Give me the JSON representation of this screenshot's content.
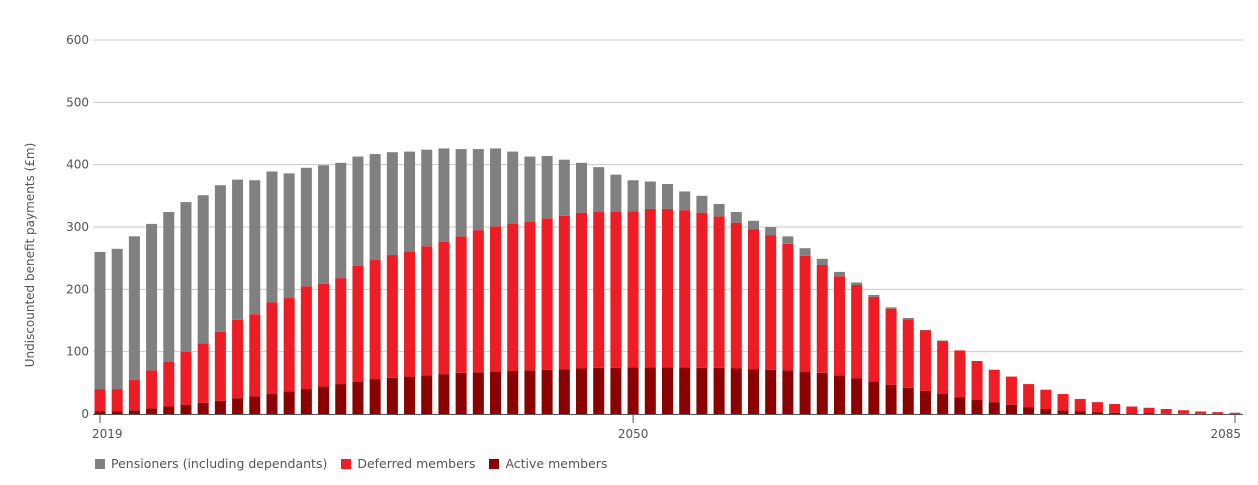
{
  "chart_data": {
    "type": "bar",
    "stacked": true,
    "ylabel": "Undiscounted benefit payments (£m)",
    "ylim": [
      0,
      600
    ],
    "yticks": [
      0,
      100,
      200,
      300,
      400,
      500,
      600
    ],
    "x": [
      2019,
      2020,
      2021,
      2022,
      2023,
      2024,
      2025,
      2026,
      2027,
      2028,
      2029,
      2030,
      2031,
      2032,
      2033,
      2034,
      2035,
      2036,
      2037,
      2038,
      2039,
      2040,
      2041,
      2042,
      2043,
      2044,
      2045,
      2046,
      2047,
      2048,
      2049,
      2050,
      2051,
      2052,
      2053,
      2054,
      2055,
      2056,
      2057,
      2058,
      2059,
      2060,
      2061,
      2062,
      2063,
      2064,
      2065,
      2066,
      2067,
      2068,
      2069,
      2070,
      2071,
      2072,
      2073,
      2074,
      2075,
      2076,
      2077,
      2078,
      2079,
      2080,
      2081,
      2082,
      2083,
      2084,
      2085
    ],
    "xtick_labels": [
      "2019",
      "2050",
      "2085"
    ],
    "grid": true,
    "legend_position": "bottom-left",
    "series": [
      {
        "name": "Active members",
        "color": "#8b0000",
        "values": [
          4,
          4,
          6,
          9,
          12,
          15,
          18,
          21,
          25,
          28,
          32,
          36,
          40,
          44,
          48,
          52,
          56,
          58,
          60,
          62,
          64,
          66,
          67,
          68,
          69,
          70,
          71,
          72,
          73,
          74,
          74,
          75,
          75,
          75,
          75,
          74,
          74,
          73,
          72,
          71,
          70,
          68,
          66,
          62,
          57,
          52,
          47,
          42,
          37,
          32,
          27,
          23,
          19,
          15,
          11,
          8,
          6,
          4,
          3,
          2,
          1,
          0.8,
          0.5,
          0.3,
          0.2,
          0.1,
          0.1
        ]
      },
      {
        "name": "Deferred members",
        "color": "#ee1c25",
        "values": [
          36,
          36,
          49,
          61,
          72,
          85,
          95,
          111,
          126,
          132,
          147,
          150,
          165,
          165,
          170,
          186,
          191,
          197,
          201,
          207,
          212,
          219,
          228,
          233,
          237,
          238,
          243,
          246,
          250,
          250,
          250,
          250,
          254,
          254,
          252,
          249,
          243,
          234,
          224,
          216,
          203,
          186,
          173,
          159,
          150,
          136,
          122,
          110,
          97,
          85,
          75,
          62,
          52,
          45,
          37,
          31,
          26,
          20,
          16,
          14,
          11,
          9.2,
          7.5,
          5.7,
          3.8,
          2.9,
          1.9
        ]
      },
      {
        "name": "Pensioners (including dependants)",
        "color": "#808080",
        "values": [
          220,
          225,
          230,
          235,
          240,
          240,
          238,
          235,
          225,
          215,
          210,
          200,
          190,
          190,
          185,
          175,
          170,
          165,
          160,
          155,
          150,
          140,
          130,
          125,
          115,
          105,
          100,
          90,
          80,
          72,
          60,
          50,
          44,
          40,
          30,
          27,
          20,
          17,
          14,
          13,
          12,
          12,
          10,
          7,
          4,
          3,
          2,
          2,
          1,
          1,
          0,
          0,
          0,
          0,
          0,
          0,
          0,
          0,
          0,
          0,
          0,
          0,
          0,
          0,
          0,
          0,
          0
        ]
      }
    ]
  }
}
